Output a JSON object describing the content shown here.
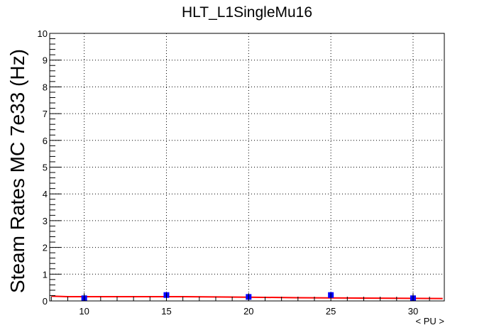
{
  "chart_data": {
    "type": "scatter",
    "title": "HLT_L1SingleMu16",
    "xlabel": "< PU >",
    "ylabel": "Steam Rates MC 7e33 (Hz)",
    "xlim": [
      7.9,
      31.9
    ],
    "ylim": [
      0,
      10
    ],
    "x_ticks": [
      10,
      15,
      20,
      25,
      30
    ],
    "y_ticks": [
      0,
      1,
      2,
      3,
      4,
      5,
      6,
      7,
      8,
      9,
      10
    ],
    "grid": true,
    "legend": "none",
    "series": [
      {
        "kind": "points",
        "color": "#0000ff",
        "x": [
          10,
          15,
          20,
          25,
          30
        ],
        "y": [
          0.1,
          0.22,
          0.15,
          0.22,
          0.1
        ]
      },
      {
        "kind": "fit",
        "color": "#ff0000",
        "x": [
          8.0,
          9.0,
          12.0,
          16.0,
          20.0,
          23.0,
          26.0,
          29.0,
          31.8
        ],
        "y": [
          0.18,
          0.16,
          0.16,
          0.16,
          0.14,
          0.12,
          0.11,
          0.1,
          0.09
        ]
      }
    ]
  }
}
